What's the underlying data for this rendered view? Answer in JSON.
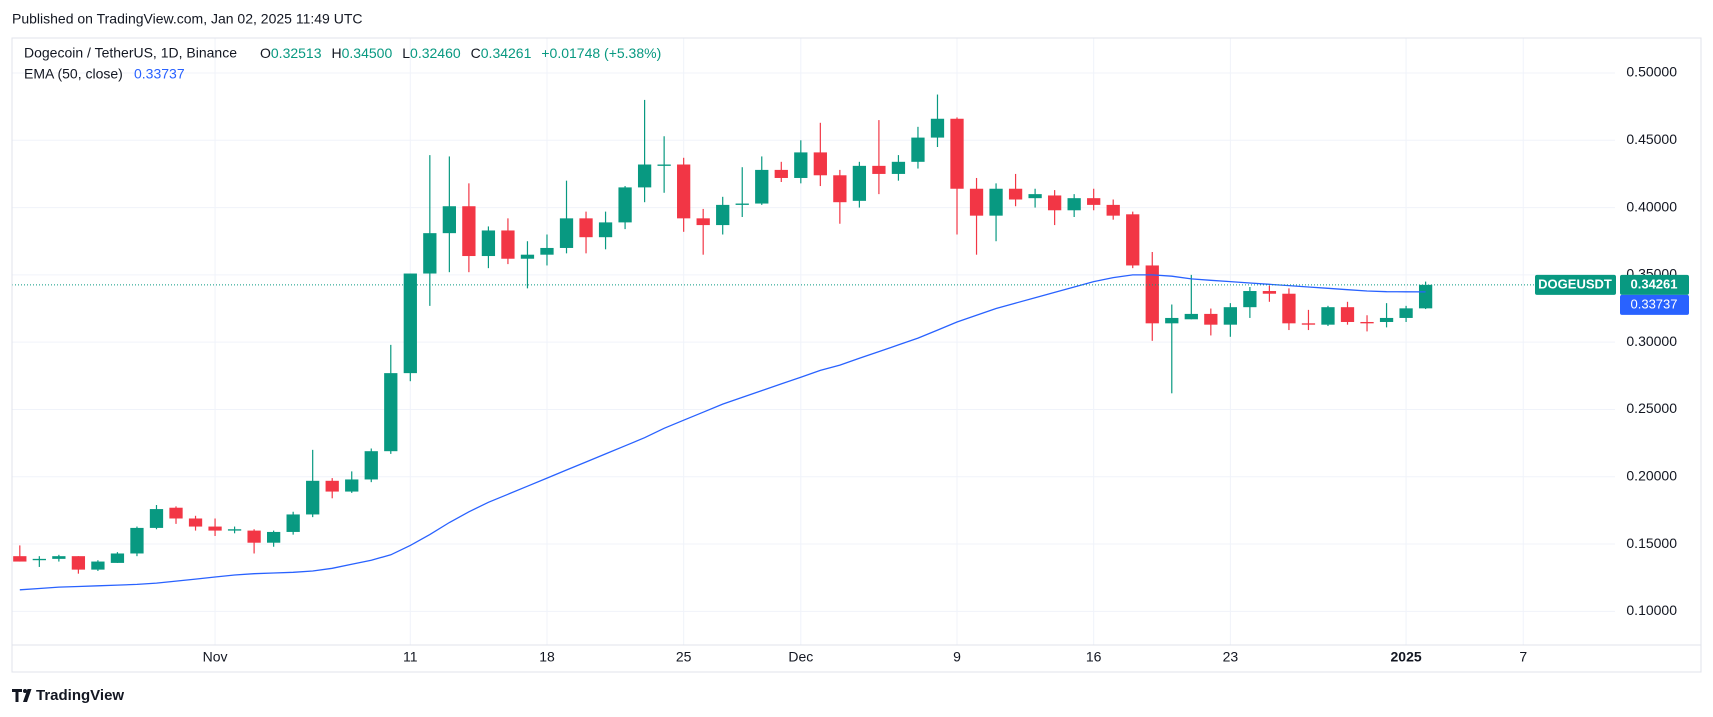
{
  "header": {
    "published": "Published on TradingView.com, Jan 02, 2025 11:49 UTC"
  },
  "footer": {
    "brand": "TradingView"
  },
  "chart_data": {
    "type": "candlestick",
    "title": "Dogecoin / TetherUS, 1D, Binance",
    "ohlc_legend": [
      {
        "key": "O",
        "value": "0.32513"
      },
      {
        "key": "H",
        "value": "0.34500"
      },
      {
        "key": "L",
        "value": "0.32460"
      },
      {
        "key": "C",
        "value": "0.34261"
      }
    ],
    "change": "+0.01748 (+5.38%)",
    "ema_legend_value": "0.33737",
    "last_price_label": "0.34261",
    "ema_price_label": "0.33737",
    "xlim": [
      -0.4,
      81.7
    ],
    "xticks": [
      {
        "value": 10,
        "label": "Nov"
      },
      {
        "value": 20,
        "label": "11"
      },
      {
        "value": 27,
        "label": "18"
      },
      {
        "value": 34,
        "label": "25"
      },
      {
        "value": 40,
        "label": "Dec"
      },
      {
        "value": 48,
        "label": "9"
      },
      {
        "value": 55,
        "label": "16"
      },
      {
        "value": 62,
        "label": "23"
      },
      {
        "value": 71,
        "label": "2025"
      },
      {
        "value": 77,
        "label": "7"
      }
    ],
    "ylim": [
      0.075,
      0.526
    ],
    "yticks": [
      {
        "value": 0.1,
        "label": "0.10000"
      },
      {
        "value": 0.15,
        "label": "0.15000"
      },
      {
        "value": 0.2,
        "label": "0.20000"
      },
      {
        "value": 0.25,
        "label": "0.25000"
      },
      {
        "value": 0.3,
        "label": "0.30000"
      },
      {
        "value": 0.35,
        "label": "0.35000"
      },
      {
        "value": 0.4,
        "label": "0.40000"
      },
      {
        "value": 0.45,
        "label": "0.45000"
      },
      {
        "value": 0.5,
        "label": "0.50000"
      }
    ],
    "grid": true,
    "series": [
      {
        "name": "DOGEUSDT",
        "up_color": "#089981",
        "down_color": "#f23645",
        "open": [
          0.141,
          0.138,
          0.139,
          0.141,
          0.131,
          0.136,
          0.143,
          0.162,
          0.177,
          0.169,
          0.163,
          0.16,
          0.16,
          0.151,
          0.159,
          0.172,
          0.197,
          0.189,
          0.198,
          0.219,
          0.277,
          0.351,
          0.381,
          0.401,
          0.364,
          0.383,
          0.362,
          0.365,
          0.37,
          0.392,
          0.378,
          0.389,
          0.415,
          0.431,
          0.432,
          0.392,
          0.387,
          0.402,
          0.403,
          0.428,
          0.422,
          0.441,
          0.424,
          0.405,
          0.431,
          0.425,
          0.434,
          0.452,
          0.466,
          0.414,
          0.394,
          0.414,
          0.407,
          0.409,
          0.398,
          0.407,
          0.402,
          0.395,
          0.357,
          0.314,
          0.317,
          0.321,
          0.313,
          0.326,
          0.338,
          0.336,
          0.314,
          0.313,
          0.326,
          0.315,
          0.315,
          0.318,
          0.32513
        ],
        "high": [
          0.149,
          0.141,
          0.142,
          0.141,
          0.138,
          0.144,
          0.163,
          0.179,
          0.178,
          0.171,
          0.169,
          0.163,
          0.161,
          0.16,
          0.174,
          0.22,
          0.199,
          0.204,
          0.221,
          0.298,
          0.351,
          0.439,
          0.438,
          0.418,
          0.386,
          0.392,
          0.375,
          0.38,
          0.42,
          0.397,
          0.397,
          0.416,
          0.48,
          0.453,
          0.437,
          0.399,
          0.408,
          0.43,
          0.438,
          0.434,
          0.45,
          0.463,
          0.428,
          0.434,
          0.465,
          0.439,
          0.46,
          0.484,
          0.467,
          0.422,
          0.418,
          0.425,
          0.414,
          0.413,
          0.41,
          0.414,
          0.406,
          0.397,
          0.367,
          0.328,
          0.35,
          0.325,
          0.329,
          0.341,
          0.342,
          0.34,
          0.324,
          0.327,
          0.33,
          0.32,
          0.329,
          0.327,
          0.345
        ],
        "low": [
          0.137,
          0.133,
          0.137,
          0.128,
          0.13,
          0.136,
          0.141,
          0.161,
          0.165,
          0.16,
          0.156,
          0.158,
          0.143,
          0.148,
          0.157,
          0.17,
          0.184,
          0.188,
          0.196,
          0.217,
          0.271,
          0.327,
          0.352,
          0.352,
          0.355,
          0.358,
          0.34,
          0.357,
          0.366,
          0.366,
          0.369,
          0.384,
          0.404,
          0.411,
          0.382,
          0.365,
          0.38,
          0.393,
          0.402,
          0.419,
          0.418,
          0.416,
          0.388,
          0.4,
          0.41,
          0.42,
          0.429,
          0.445,
          0.38,
          0.365,
          0.375,
          0.401,
          0.4,
          0.387,
          0.393,
          0.398,
          0.391,
          0.355,
          0.301,
          0.262,
          0.317,
          0.305,
          0.304,
          0.318,
          0.33,
          0.309,
          0.309,
          0.312,
          0.313,
          0.308,
          0.311,
          0.315,
          0.3246
        ],
        "close": [
          0.137,
          0.139,
          0.141,
          0.131,
          0.137,
          0.143,
          0.162,
          0.176,
          0.169,
          0.163,
          0.16,
          0.161,
          0.151,
          0.159,
          0.172,
          0.197,
          0.189,
          0.198,
          0.219,
          0.277,
          0.351,
          0.381,
          0.401,
          0.364,
          0.383,
          0.362,
          0.365,
          0.37,
          0.392,
          0.378,
          0.389,
          0.415,
          0.432,
          0.432,
          0.392,
          0.387,
          0.402,
          0.403,
          0.428,
          0.422,
          0.441,
          0.424,
          0.404,
          0.431,
          0.425,
          0.434,
          0.452,
          0.466,
          0.414,
          0.394,
          0.414,
          0.406,
          0.41,
          0.398,
          0.407,
          0.402,
          0.394,
          0.357,
          0.314,
          0.318,
          0.321,
          0.313,
          0.326,
          0.338,
          0.336,
          0.314,
          0.313,
          0.326,
          0.315,
          0.314,
          0.318,
          0.32513,
          0.34261
        ]
      },
      {
        "name": "EMA (50, close)",
        "type": "line",
        "color": "#2962ff",
        "values": [
          0.116,
          0.117,
          0.118,
          0.1185,
          0.119,
          0.1195,
          0.12,
          0.121,
          0.1225,
          0.124,
          0.1255,
          0.127,
          0.128,
          0.1285,
          0.129,
          0.13,
          0.132,
          0.135,
          0.138,
          0.142,
          0.149,
          0.157,
          0.166,
          0.174,
          0.181,
          0.187,
          0.193,
          0.199,
          0.205,
          0.211,
          0.217,
          0.223,
          0.229,
          0.236,
          0.242,
          0.248,
          0.254,
          0.259,
          0.264,
          0.269,
          0.274,
          0.279,
          0.283,
          0.288,
          0.293,
          0.298,
          0.303,
          0.309,
          0.315,
          0.32,
          0.325,
          0.329,
          0.333,
          0.337,
          0.341,
          0.345,
          0.348,
          0.35,
          0.35,
          0.349,
          0.347,
          0.346,
          0.345,
          0.344,
          0.343,
          0.342,
          0.341,
          0.34,
          0.339,
          0.338,
          0.3375,
          0.3374,
          0.33737
        ]
      }
    ]
  }
}
